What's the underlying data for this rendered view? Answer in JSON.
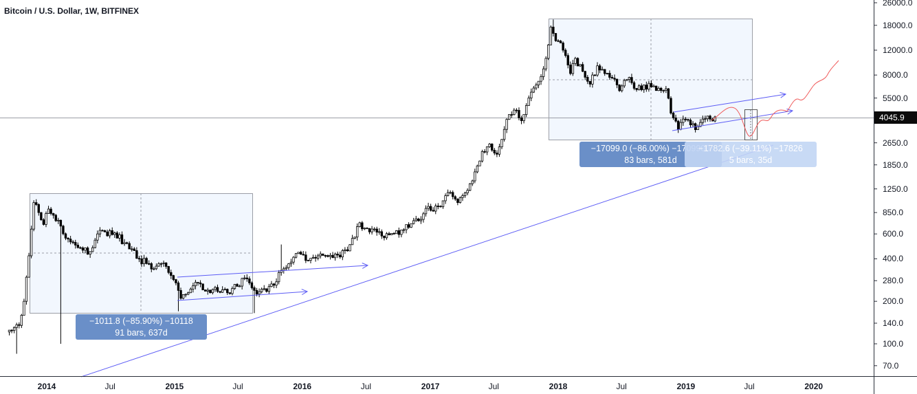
{
  "title": "Bitcoin / U.S. Dollar, 1W, BITFINEX",
  "current_price": "4045.9",
  "measurements": [
    {
      "line1": "−1011.8 (−85.90%) −10118",
      "line2": "91 bars, 637d",
      "color": "#6a8fc8"
    },
    {
      "line1": "−17099.0 (−86.00%) −1709900",
      "line2": "83 bars, 581d",
      "color": "#6a8fc8"
    },
    {
      "line1": "−1782.6 (−39.11%) −17826",
      "line2": "5 bars, 35d",
      "color": "#c3d6f5"
    }
  ],
  "colors": {
    "trendline": "#5b5bf5",
    "projection": "#f05a5a",
    "box_fill": "#f2f7fe",
    "up": "#ffffff",
    "down": "#000000"
  },
  "chart_data": {
    "type": "candlestick",
    "interval": "1W",
    "y_scale": "log",
    "ylim": [
      65,
      27000
    ],
    "y_ticks": [
      "26000.0",
      "18000.0",
      "12000.0",
      "8000.0",
      "5500.0",
      "2650.0",
      "1850.0",
      "1250.0",
      "850.0",
      "600.0",
      "400.0",
      "280.0",
      "200.0",
      "140.0",
      "100.0",
      "70.0"
    ],
    "x_ticks": [
      {
        "label": "2014",
        "date": "2014-01-01",
        "bold": true
      },
      {
        "label": "Jul",
        "date": "2014-07-01"
      },
      {
        "label": "2015",
        "date": "2015-01-01",
        "bold": true
      },
      {
        "label": "Jul",
        "date": "2015-07-01"
      },
      {
        "label": "2016",
        "date": "2016-01-01",
        "bold": true
      },
      {
        "label": "Jul",
        "date": "2016-07-01"
      },
      {
        "label": "2017",
        "date": "2017-01-01",
        "bold": true
      },
      {
        "label": "Jul",
        "date": "2017-07-01"
      },
      {
        "label": "2018",
        "date": "2018-01-01",
        "bold": true
      },
      {
        "label": "Jul",
        "date": "2018-07-01"
      },
      {
        "label": "2019",
        "date": "2019-01-01",
        "bold": true
      },
      {
        "label": "Jul",
        "date": "2019-07-01"
      },
      {
        "label": "2020",
        "date": "2020-01-01",
        "bold": true
      }
    ],
    "approx_closes": [
      [
        "2013-09-16",
        125
      ],
      [
        "2013-10-14",
        135
      ],
      [
        "2013-10-28",
        200
      ],
      [
        "2013-11-11",
        420
      ],
      [
        "2013-11-25",
        1000
      ],
      [
        "2013-12-09",
        850
      ],
      [
        "2013-12-23",
        700
      ],
      [
        "2014-01-06",
        900
      ],
      [
        "2014-02-03",
        750
      ],
      [
        "2014-02-24",
        560
      ],
      [
        "2014-03-24",
        500
      ],
      [
        "2014-04-14",
        460
      ],
      [
        "2014-05-05",
        450
      ],
      [
        "2014-05-26",
        600
      ],
      [
        "2014-06-16",
        620
      ],
      [
        "2014-07-14",
        610
      ],
      [
        "2014-08-11",
        520
      ],
      [
        "2014-09-01",
        470
      ],
      [
        "2014-09-22",
        400
      ],
      [
        "2014-10-13",
        370
      ],
      [
        "2014-11-03",
        340
      ],
      [
        "2014-11-24",
        370
      ],
      [
        "2014-12-15",
        320
      ],
      [
        "2015-01-05",
        270
      ],
      [
        "2015-01-19",
        210
      ],
      [
        "2015-02-09",
        230
      ],
      [
        "2015-03-09",
        270
      ],
      [
        "2015-04-06",
        240
      ],
      [
        "2015-05-04",
        235
      ],
      [
        "2015-06-01",
        230
      ],
      [
        "2015-06-29",
        255
      ],
      [
        "2015-07-13",
        290
      ],
      [
        "2015-08-03",
        270
      ],
      [
        "2015-08-24",
        225
      ],
      [
        "2015-09-21",
        235
      ],
      [
        "2015-10-12",
        260
      ],
      [
        "2015-10-26",
        320
      ],
      [
        "2015-11-09",
        340
      ],
      [
        "2015-12-07",
        410
      ],
      [
        "2015-12-28",
        430
      ],
      [
        "2016-01-18",
        390
      ],
      [
        "2016-02-15",
        420
      ],
      [
        "2016-03-14",
        415
      ],
      [
        "2016-04-11",
        425
      ],
      [
        "2016-05-09",
        455
      ],
      [
        "2016-05-30",
        570
      ],
      [
        "2016-06-13",
        720
      ],
      [
        "2016-06-27",
        660
      ],
      [
        "2016-07-25",
        650
      ],
      [
        "2016-08-15",
        580
      ],
      [
        "2016-09-12",
        605
      ],
      [
        "2016-10-10",
        640
      ],
      [
        "2016-11-07",
        710
      ],
      [
        "2016-12-05",
        760
      ],
      [
        "2016-12-26",
        940
      ],
      [
        "2017-01-09",
        870
      ],
      [
        "2017-02-06",
        1030
      ],
      [
        "2017-02-27",
        1180
      ],
      [
        "2017-03-20",
        1000
      ],
      [
        "2017-04-17",
        1220
      ],
      [
        "2017-05-08",
        1650
      ],
      [
        "2017-05-29",
        2300
      ],
      [
        "2017-06-19",
        2600
      ],
      [
        "2017-07-10",
        2200
      ],
      [
        "2017-07-24",
        2800
      ],
      [
        "2017-08-14",
        4200
      ],
      [
        "2017-09-04",
        4500
      ],
      [
        "2017-09-18",
        3800
      ],
      [
        "2017-10-09",
        5500
      ],
      [
        "2017-10-30",
        6800
      ],
      [
        "2017-11-13",
        7800
      ],
      [
        "2017-11-27",
        10500
      ],
      [
        "2017-12-11",
        17500
      ],
      [
        "2017-12-25",
        14000
      ],
      [
        "2018-01-08",
        13500
      ],
      [
        "2018-01-22",
        11000
      ],
      [
        "2018-02-05",
        8200
      ],
      [
        "2018-02-19",
        10500
      ],
      [
        "2018-03-12",
        8500
      ],
      [
        "2018-04-02",
        6900
      ],
      [
        "2018-04-23",
        9300
      ],
      [
        "2018-05-14",
        8200
      ],
      [
        "2018-06-04",
        7600
      ],
      [
        "2018-06-25",
        6200
      ],
      [
        "2018-07-23",
        7700
      ],
      [
        "2018-08-13",
        6300
      ],
      [
        "2018-09-03",
        6800
      ],
      [
        "2018-09-24",
        6600
      ],
      [
        "2018-10-15",
        6450
      ],
      [
        "2018-11-05",
        6400
      ],
      [
        "2018-11-19",
        4300
      ],
      [
        "2018-12-10",
        3300
      ],
      [
        "2018-12-24",
        3900
      ],
      [
        "2019-01-14",
        3550
      ],
      [
        "2019-02-04",
        3450
      ],
      [
        "2019-02-18",
        3900
      ],
      [
        "2019-03-11",
        3900
      ],
      [
        "2019-03-25",
        4045.9
      ]
    ],
    "notable_wicks": [
      {
        "date": "2013-10-07",
        "low": 85
      },
      {
        "date": "2014-02-10",
        "low": 100
      },
      {
        "date": "2015-01-12",
        "low": 170
      },
      {
        "date": "2015-08-17",
        "low": 165
      },
      {
        "date": "2015-11-02",
        "high": 505
      },
      {
        "date": "2017-12-18",
        "high": 19800
      }
    ]
  }
}
